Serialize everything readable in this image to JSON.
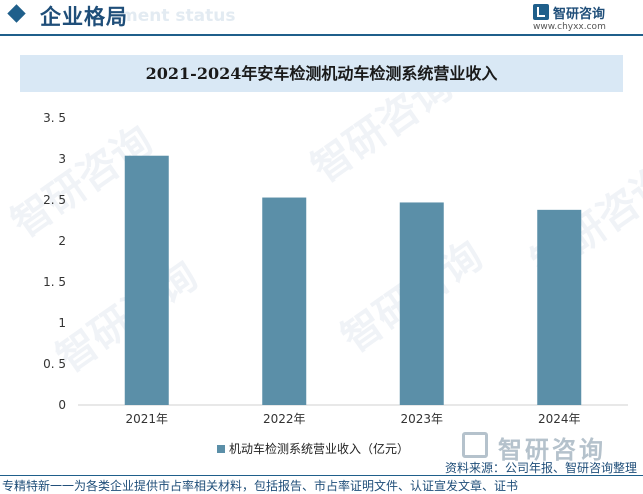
{
  "header": {
    "title": "企业格局",
    "ghost_text": "ment status",
    "brand_name": "智研咨询",
    "brand_url": "www.chyxx.com"
  },
  "colors": {
    "accent": "#1f5f8b",
    "bar": "#5b8fa8",
    "title_bg": "#d9e8f5"
  },
  "watermark_text": "智研咨询",
  "chart_data": {
    "type": "bar",
    "title": "2021-2024年安车检测机动车检测系统营业收入",
    "categories": [
      "2021年",
      "2022年",
      "2023年",
      "2024年"
    ],
    "series": [
      {
        "name": "机动车检测系统营业收入（亿元）",
        "values": [
          3.04,
          2.53,
          2.47,
          2.38
        ]
      }
    ],
    "y_ticks": [
      "0",
      "0.5",
      "1",
      "1.5",
      "2",
      "2.5",
      "3",
      "3.5"
    ],
    "ylim": [
      0,
      3.5
    ],
    "xlabel": "",
    "ylabel": "",
    "grid": false,
    "legend_position": "bottom"
  },
  "legend_label": "机动车检测系统营业收入（亿元）",
  "bottom_brand": "智研咨询",
  "source": "资料来源：公司年报、智研咨询整理",
  "footer": "专精特新一一为各类企业提供市占率相关材料，包括报告、市占率证明文件、认证宣发文章、证书"
}
